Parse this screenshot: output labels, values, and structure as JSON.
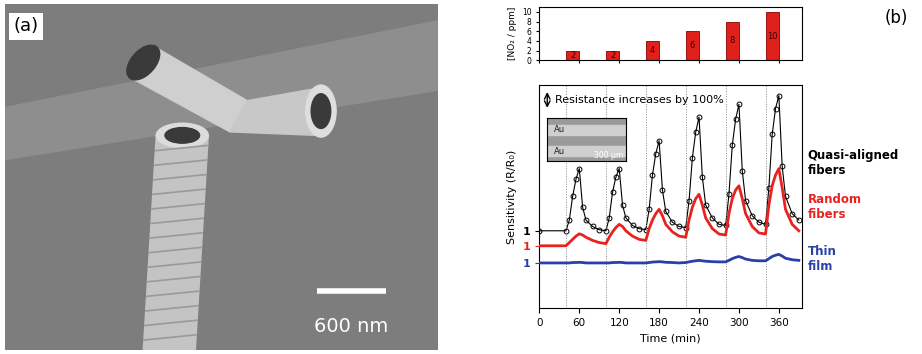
{
  "panel_a": {
    "label": "(a)",
    "scale_bar": "600 nm"
  },
  "chart_data": {
    "label": "(b)",
    "type": "line",
    "x_label": "Time (min)",
    "y_label": "Sensitivity (R/R₀)",
    "xlim": [
      0,
      395
    ],
    "xticks": [
      0,
      60,
      120,
      180,
      240,
      300,
      360
    ],
    "annotation": {
      "text": "Resistance increases by 100%",
      "span": 1
    },
    "inset": {
      "labels": [
        "Au",
        "Au"
      ],
      "scale_bar": "300 µm"
    },
    "x": [
      0,
      40,
      45,
      50,
      55,
      60,
      65,
      70,
      80,
      90,
      100,
      105,
      110,
      115,
      120,
      125,
      130,
      140,
      150,
      160,
      165,
      170,
      175,
      180,
      185,
      190,
      200,
      210,
      220,
      225,
      230,
      235,
      240,
      245,
      250,
      260,
      270,
      280,
      285,
      290,
      295,
      300,
      305,
      310,
      320,
      330,
      340,
      345,
      350,
      355,
      360,
      365,
      370,
      380,
      390
    ],
    "series": [
      {
        "name": "Quasi-aligned fibers",
        "color": "#000000",
        "marker": "circle",
        "line_style": "solid",
        "ylim": [
          -2.6,
          7.8
        ],
        "yticks": [
          1
        ],
        "values": [
          1.0,
          1.0,
          1.5,
          2.6,
          3.4,
          3.9,
          2.1,
          1.5,
          1.2,
          1.05,
          1.0,
          1.6,
          2.8,
          3.5,
          3.9,
          2.2,
          1.6,
          1.25,
          1.1,
          1.05,
          2.0,
          3.6,
          4.6,
          5.2,
          2.9,
          1.9,
          1.4,
          1.2,
          1.15,
          2.4,
          4.4,
          5.6,
          6.3,
          3.5,
          2.2,
          1.6,
          1.3,
          1.25,
          2.7,
          5.0,
          6.2,
          6.9,
          3.8,
          2.4,
          1.7,
          1.4,
          1.3,
          3.0,
          5.5,
          6.7,
          7.3,
          4.0,
          2.6,
          1.8,
          1.5
        ]
      },
      {
        "name": "Random fibers",
        "color": "#e8231f",
        "marker": "none",
        "line_style": "solid",
        "ylim": [
          -1.9,
          8.5
        ],
        "yticks": [
          1
        ],
        "values": [
          1.0,
          1.0,
          1.15,
          1.3,
          1.45,
          1.56,
          1.5,
          1.4,
          1.25,
          1.15,
          1.1,
          1.4,
          1.65,
          1.85,
          2.0,
          1.9,
          1.7,
          1.45,
          1.3,
          1.25,
          1.8,
          2.2,
          2.5,
          2.7,
          2.4,
          2.0,
          1.65,
          1.45,
          1.4,
          2.2,
          2.8,
          3.2,
          3.4,
          2.9,
          2.3,
          1.8,
          1.55,
          1.5,
          2.5,
          3.2,
          3.6,
          3.8,
          3.2,
          2.5,
          1.9,
          1.6,
          1.55,
          2.9,
          3.8,
          4.3,
          4.6,
          3.7,
          2.7,
          2.0,
          1.7
        ]
      },
      {
        "name": "Thin film",
        "color": "#2b3fa8",
        "marker": "none",
        "line_style": "solid",
        "ylim": [
          -1.1,
          9.3
        ],
        "yticks": [
          1
        ],
        "values": [
          1.0,
          1.0,
          1.0,
          1.02,
          1.02,
          1.03,
          1.02,
          1.0,
          1.0,
          1.0,
          1.0,
          1.0,
          1.02,
          1.02,
          1.03,
          1.02,
          1.0,
          1.0,
          1.0,
          1.0,
          1.02,
          1.04,
          1.05,
          1.06,
          1.05,
          1.03,
          1.02,
          1.0,
          1.02,
          1.05,
          1.08,
          1.1,
          1.12,
          1.1,
          1.08,
          1.06,
          1.05,
          1.05,
          1.12,
          1.2,
          1.26,
          1.3,
          1.25,
          1.18,
          1.12,
          1.1,
          1.1,
          1.2,
          1.3,
          1.36,
          1.4,
          1.32,
          1.22,
          1.15,
          1.12
        ]
      }
    ],
    "concentration": {
      "type": "bar",
      "y_label": "[NO₂ / ppm]",
      "x": [
        50,
        110,
        170,
        230,
        290,
        350
      ],
      "bar_width": 20,
      "values": [
        2,
        2,
        4,
        6,
        8,
        10
      ],
      "ylim": [
        0,
        11
      ],
      "yticks": [
        0,
        2,
        4,
        6,
        8,
        10
      ],
      "color": "#e0201b",
      "data_labels": true,
      "tick_labels": "y"
    }
  }
}
